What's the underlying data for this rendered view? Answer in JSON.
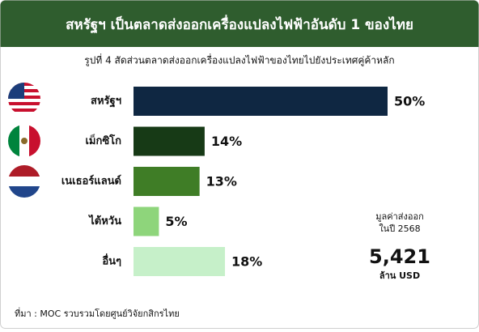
{
  "chart_data": {
    "type": "bar",
    "orientation": "horizontal",
    "title": "สหรัฐฯ เป็นตลาดส่งออกเครื่องแปลงไฟฟ้าอันดับ 1 ของไทย",
    "subtitle": "รูปที่ 4 สัดส่วนตลาดส่งออกเครื่องแปลงไฟฟ้าของไทยไปยังประเทศคู่ค้าหลัก",
    "categories": [
      "สหรัฐฯ",
      "เม็กซิโก",
      "เนเธอร์แลนด์",
      "ไต้หวัน",
      "อื่นๆ"
    ],
    "values": [
      50,
      14,
      13,
      5,
      18
    ],
    "value_labels": [
      "50%",
      "14%",
      "13%",
      "5%",
      "18%"
    ],
    "colors": [
      "#0f2742",
      "#173a16",
      "#3f7d26",
      "#8ed57b",
      "#c6f0c9"
    ],
    "annotation": {
      "line1": "มูลค่าส่งออก",
      "line2": "ในปี 2568",
      "amount": "5,421",
      "unit": "ล้าน USD"
    },
    "source": "ที่มา : MOC รวบรวมโดยศูนย์วิจัยกสิกรไทย"
  }
}
